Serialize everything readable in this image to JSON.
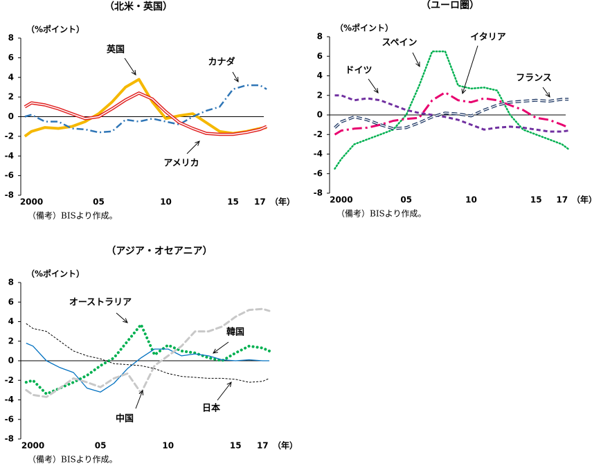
{
  "chart_data": [
    {
      "type": "line",
      "title": "（北米・英国）",
      "y_label": "（%ポイント）",
      "x_unit": "（年）",
      "note": "（備考）BISより作成。",
      "x": [
        1999.5,
        2000,
        2001,
        2002,
        2003,
        2004,
        2005,
        2006,
        2007,
        2008,
        2009,
        2010,
        2011,
        2012,
        2013,
        2014,
        2015,
        2016,
        2017,
        2017.5
      ],
      "xlim": [
        1999.2,
        2017.6
      ],
      "xticks": [
        2000,
        {
          "value": 2005,
          "label": "05"
        },
        {
          "value": 2010,
          "label": "10"
        },
        {
          "value": 2015,
          "label": "15"
        },
        {
          "value": 2017,
          "label": "17"
        }
      ],
      "ylim": [
        -8,
        8
      ],
      "yticks": [
        -8,
        -6,
        -4,
        -2,
        0,
        2,
        4,
        6,
        8
      ],
      "series": [
        {
          "name": "英国",
          "color": "#f5b800",
          "values": [
            -2,
            -1.5,
            -1.1,
            -1.2,
            -1.0,
            -0.5,
            0.3,
            1.5,
            3.0,
            3.8,
            1.5,
            -0.2,
            0.1,
            0.3,
            -0.6,
            -1.5,
            -1.7,
            -1.5,
            -1.2,
            -1.1
          ]
        },
        {
          "name": "カナダ",
          "color": "#2e75b6",
          "values": [
            0,
            0.2,
            -0.5,
            -0.5,
            -1.2,
            -1.3,
            -1.6,
            -1.5,
            -0.3,
            -0.5,
            -0.2,
            -0.5,
            -0.8,
            0,
            0.6,
            1.0,
            2.8,
            3.2,
            3.2,
            2.8
          ]
        },
        {
          "name": "アメリカ",
          "color": "#e02020",
          "values": [
            1.0,
            1.4,
            1.2,
            0.8,
            0.3,
            -0.2,
            0.0,
            0.8,
            1.7,
            2.4,
            1.8,
            0.5,
            -0.6,
            -1.2,
            -1.7,
            -1.8,
            -1.8,
            -1.6,
            -1.3,
            -1.0
          ]
        }
      ]
    },
    {
      "type": "line",
      "title": "（ユーロ圏）",
      "y_label": "（%ポイント）",
      "x_unit": "（年）",
      "note": "（備考）BISより作成。",
      "x": [
        1999.5,
        2000,
        2001,
        2002,
        2003,
        2004,
        2005,
        2006,
        2007,
        2008,
        2009,
        2010,
        2011,
        2012,
        2013,
        2014,
        2015,
        2016,
        2017,
        2017.5
      ],
      "xlim": [
        1999.1,
        2017.6
      ],
      "xticks": [
        2000,
        {
          "value": 2005,
          "label": "05"
        },
        {
          "value": 2010,
          "label": "10"
        },
        {
          "value": 2015,
          "label": "15"
        },
        {
          "value": 2017,
          "label": "17"
        }
      ],
      "ylim": [
        -8,
        8
      ],
      "yticks": [
        -8,
        -6,
        -4,
        -2,
        0,
        2,
        4,
        6,
        8
      ],
      "series": [
        {
          "name": "スペイン",
          "color": "#00b050",
          "values": [
            -5.5,
            -4.5,
            -3,
            -2.5,
            -2,
            -1.5,
            0,
            3,
            6.5,
            6.5,
            3,
            2.7,
            2.8,
            2.5,
            0,
            -1.5,
            -2,
            -2.5,
            -3,
            -3.5
          ]
        },
        {
          "name": "イタリア",
          "color": "#e8006e",
          "values": [
            -2,
            -1.6,
            -1.4,
            -1.3,
            -1.0,
            -0.6,
            -0.4,
            -0.3,
            1.5,
            2.3,
            1.5,
            1.3,
            1.7,
            1.5,
            1.0,
            0.5,
            -0.3,
            -0.5,
            -1.0,
            -1.3
          ]
        },
        {
          "name": "ドイツ",
          "color": "#7030a0",
          "values": [
            2,
            2,
            1.5,
            1.7,
            1.5,
            1.0,
            0.5,
            0.2,
            0,
            -0.2,
            -0.5,
            -1.0,
            -1.5,
            -1.3,
            -1.2,
            -1.3,
            -1.5,
            -1.7,
            -1.7,
            -1.6
          ]
        },
        {
          "name": "フランス",
          "color": "#1f3864",
          "values": [
            -1.3,
            -0.7,
            -0.2,
            -0.5,
            -1.0,
            -1.4,
            -1.3,
            -0.8,
            -0.2,
            0.2,
            0.1,
            -0.1,
            0.5,
            1.0,
            1.3,
            1.4,
            1.5,
            1.4,
            1.6,
            1.6
          ]
        }
      ]
    },
    {
      "type": "line",
      "title": "（アジア・オセアニア）",
      "y_label": "（%ポイント）",
      "x_unit": "（年）",
      "note": "（備考）BISより作成。",
      "x": [
        1999.5,
        2000,
        2001,
        2002,
        2003,
        2004,
        2005,
        2006,
        2007,
        2008,
        2009,
        2010,
        2011,
        2012,
        2013,
        2014,
        2015,
        2016,
        2017,
        2017.5
      ],
      "xlim": [
        1999.1,
        2017.6
      ],
      "xticks": [
        2000,
        {
          "value": 2005,
          "label": "05"
        },
        {
          "value": 2010,
          "label": "10"
        },
        {
          "value": 2015,
          "label": "15"
        },
        {
          "value": 2017,
          "label": "17"
        }
      ],
      "ylim": [
        -8,
        8
      ],
      "yticks": [
        -8,
        -6,
        -4,
        -2,
        0,
        2,
        4,
        6,
        8
      ],
      "series": [
        {
          "name": "オーストラリア",
          "color": "#00b050",
          "values": [
            -2.2,
            -2,
            -3.4,
            -2.8,
            -2.2,
            -1.5,
            -0.5,
            0.3,
            2.0,
            3.7,
            0.6,
            1.6,
            1.0,
            0.8,
            0.3,
            0,
            0.8,
            1.5,
            1.3,
            1.0
          ]
        },
        {
          "name": "韓国",
          "color": "#0070c0",
          "values": [
            1.8,
            1.5,
            0,
            -0.7,
            -1.2,
            -2.8,
            -3.2,
            -2.3,
            -0.8,
            0.3,
            1.2,
            1.2,
            0.5,
            0.7,
            0.5,
            0.1,
            0,
            0.1,
            0,
            0
          ]
        },
        {
          "name": "中国",
          "color": "#c8c8c8",
          "values": [
            -3,
            -3.5,
            -3.7,
            -2.8,
            -1.8,
            -2.2,
            -2.7,
            -1.8,
            -1.3,
            -3.3,
            -0.5,
            0.5,
            1.5,
            3.0,
            3.0,
            3.5,
            4.5,
            5.2,
            5.3,
            5.1
          ]
        },
        {
          "name": "日本",
          "color": "#000000",
          "values": [
            3.8,
            3.3,
            3.0,
            2.0,
            1.0,
            0.5,
            0.2,
            -0.3,
            -0.4,
            -0.5,
            -0.8,
            -1.3,
            -1.6,
            -1.7,
            -1.8,
            -1.8,
            -1.9,
            -2.2,
            -2.1,
            -1.8
          ]
        }
      ]
    }
  ]
}
